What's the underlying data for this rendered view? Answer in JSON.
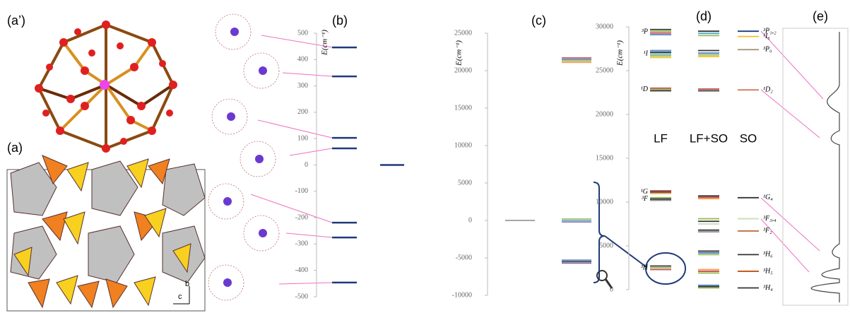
{
  "panel_labels": {
    "a_prime": "(a’)",
    "a": "(a)",
    "b": "(b)",
    "c": "(c)",
    "d": "(d)",
    "e": "(e)"
  },
  "structure_axes": {
    "b": "b",
    "c": "c"
  },
  "panel_b": {
    "axis_label": "E(cm⁻¹)",
    "ylim": [
      -500,
      500
    ],
    "yticks": [
      500,
      400,
      300,
      200,
      100,
      0,
      -100,
      -200,
      -300,
      -400,
      -500
    ],
    "levels": [
      446,
      336,
      103,
      63,
      -219,
      -275,
      -446
    ],
    "level_color": "#1f3a7a",
    "ground": 0
  },
  "panel_c": {
    "axis_label": "E(cm⁻¹)",
    "ylim": [
      -10000,
      25000
    ],
    "yticks": [
      25000,
      20000,
      15000,
      10000,
      5000,
      0,
      -5000,
      -10000
    ],
    "columns": [
      {
        "levels": [
          0
        ],
        "colors": [
          "#888888"
        ]
      },
      {
        "levels": [
          21700,
          21500,
          21300,
          21100,
          200,
          0,
          -200,
          -5300,
          -5500,
          -5700
        ],
        "colors": [
          "#c0504d",
          "#4f81bd",
          "#9bbb59",
          "#f79646",
          "#9bbb59",
          "#4bacc6",
          "#8064a2",
          "#4f81bd",
          "#333333",
          "#8064a2"
        ]
      }
    ]
  },
  "panel_d": {
    "axis_label": "E(cm⁻¹)",
    "ylim": [
      0,
      30000
    ],
    "yticks": [
      0,
      5000,
      10000,
      15000,
      20000,
      25000,
      30000
    ],
    "columns": [
      {
        "heading": "LF",
        "groups": [
          {
            "term": "³P",
            "levels": [
              29700,
              29500,
              29300,
              29100
            ],
            "colors": [
              "#333333",
              "#9bbb59",
              "#c0504d",
              "#4f81bd"
            ]
          },
          {
            "term": "¹I",
            "levels": [
              27300,
              27100,
              26900,
              26700,
              26500
            ],
            "colors": [
              "#4f81bd",
              "#333333",
              "#4bacc6",
              "#9bbb59",
              "#f0c020"
            ]
          },
          {
            "term": "¹D",
            "levels": [
              23000,
              22850,
              22700
            ],
            "colors": [
              "#c0504d",
              "#9bbb59",
              "#333333"
            ]
          },
          {
            "term": "¹G",
            "levels": [
              11300,
              11150,
              11000
            ],
            "colors": [
              "#c0504d",
              "#333333",
              "#f79646"
            ]
          },
          {
            "term": "³F",
            "levels": [
              10500,
              10350,
              10200
            ],
            "colors": [
              "#9bbb59",
              "#333333",
              "#888888"
            ]
          },
          {
            "term": "³H",
            "levels": [
              2700,
              2500,
              2300
            ],
            "colors": [
              "#333333",
              "#9bbb59",
              "#c0504d"
            ]
          }
        ]
      },
      {
        "heading": "LF+SO",
        "groups": [
          {
            "levels": [
              29500,
              29250,
              29000
            ],
            "colors": [
              "#333333",
              "#4bacc6",
              "#9bbb59"
            ]
          },
          {
            "levels": [
              27300,
              27000,
              26800,
              26600
            ],
            "colors": [
              "#333333",
              "#4f81bd",
              "#9bbb59",
              "#f0c020"
            ]
          },
          {
            "levels": [
              22900,
              22700
            ],
            "colors": [
              "#c0504d",
              "#333333"
            ]
          },
          {
            "levels": [
              10700,
              10550,
              10400
            ],
            "colors": [
              "#333333",
              "#c0504d",
              "#f79646"
            ]
          },
          {
            "levels": [
              8100,
              7800,
              7500
            ],
            "colors": [
              "#9bbb59",
              "#333333",
              "#c5e0b4"
            ]
          },
          {
            "levels": [
              6800,
              6600
            ],
            "colors": [
              "#333333",
              "#888888"
            ]
          },
          {
            "levels": [
              4400,
              4200,
              4000
            ],
            "colors": [
              "#333333",
              "#4f81bd",
              "#9bbb59"
            ]
          },
          {
            "levels": [
              2300,
              2100,
              1900
            ],
            "colors": [
              "#f79646",
              "#c0504d",
              "#9bbb59"
            ]
          },
          {
            "levels": [
              500,
              350,
              200
            ],
            "colors": [
              "#4f81bd",
              "#333333",
              "#9bbb59"
            ]
          }
        ]
      },
      {
        "heading": "SO",
        "groups": [
          {
            "term": "³P₁,₂",
            "levels": [
              29500
            ],
            "colors": [
              "#1f3a7a"
            ]
          },
          {
            "term": "¹I₆",
            "levels": [
              28900
            ],
            "colors": [
              "#f0c020"
            ]
          },
          {
            "term": "³P₀",
            "levels": [
              27400
            ],
            "colors": [
              "#a09070"
            ]
          },
          {
            "term": "¹D₂",
            "levels": [
              22800
            ],
            "colors": [
              "#d07050"
            ]
          },
          {
            "term": "¹G₄",
            "levels": [
              10500
            ],
            "colors": [
              "#333333"
            ]
          },
          {
            "term": "³F₃,₄",
            "levels": [
              8100
            ],
            "colors": [
              "#c5e0b4"
            ]
          },
          {
            "term": "³F₂",
            "levels": [
              6700
            ],
            "colors": [
              "#c07040"
            ]
          },
          {
            "term": "³H₆",
            "levels": [
              4000
            ],
            "colors": [
              "#333333"
            ]
          },
          {
            "term": "³H₅",
            "levels": [
              2100
            ],
            "colors": [
              "#c05010"
            ]
          },
          {
            "term": "³H₄",
            "levels": [
              200
            ],
            "colors": [
              "#333333"
            ]
          }
        ]
      }
    ]
  }
}
